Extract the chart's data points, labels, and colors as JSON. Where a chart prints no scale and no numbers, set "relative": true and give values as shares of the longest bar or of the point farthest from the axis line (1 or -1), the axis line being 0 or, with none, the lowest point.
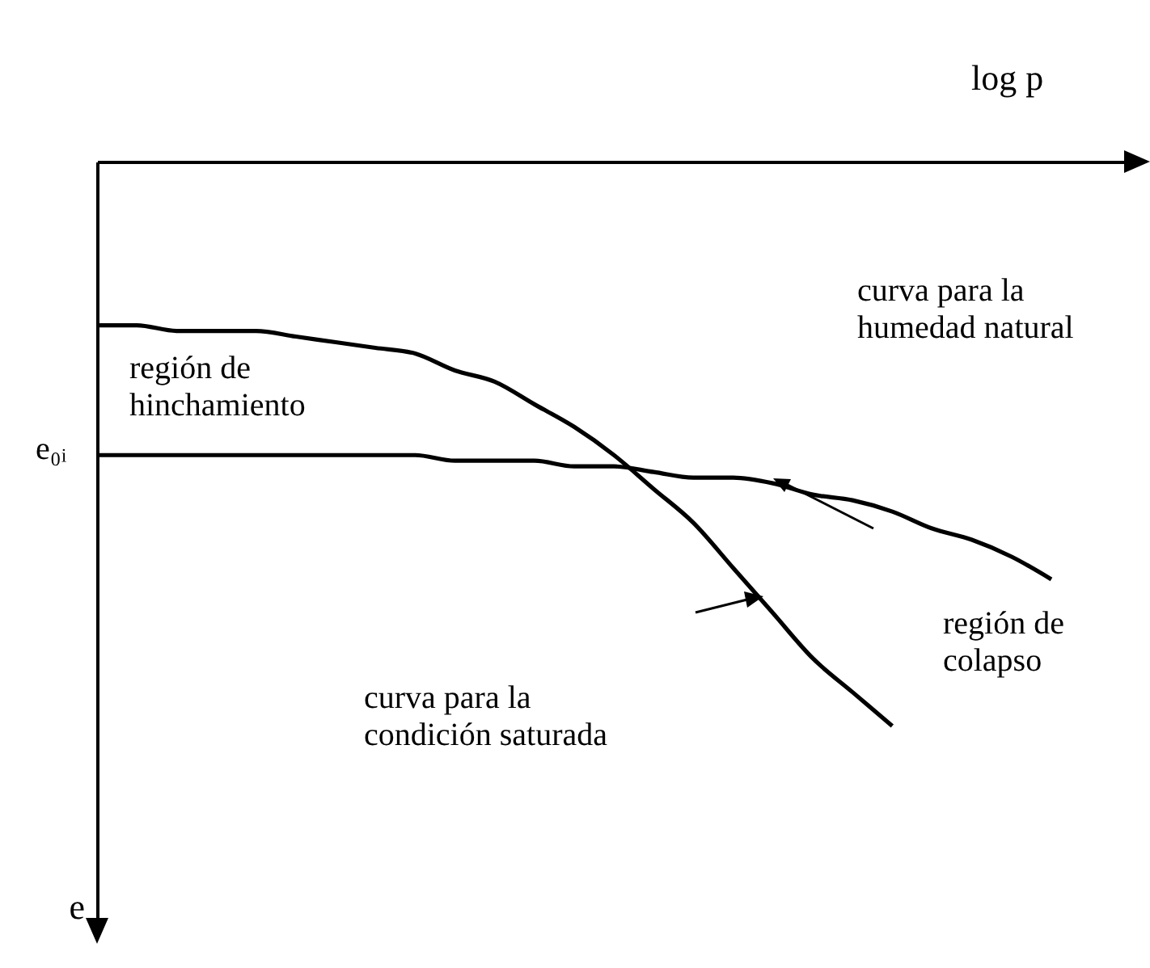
{
  "chart_data": {
    "type": "line",
    "relative": true,
    "xlabel": "log p",
    "ylabel": "e",
    "categories": [
      null,
      null,
      null,
      null,
      null,
      null,
      null,
      null,
      null,
      null,
      null,
      null,
      null,
      null,
      null,
      null,
      null,
      null,
      null,
      null,
      null,
      null,
      null,
      null,
      null
    ],
    "series": [
      {
        "color": "#000000",
        "values": [
          -0.29,
          -0.29,
          -0.3,
          -0.3,
          -0.3,
          -0.31,
          -0.32,
          -0.33,
          -0.34,
          -0.37,
          -0.39,
          -0.43,
          -0.47,
          -0.52,
          -0.58,
          -0.64,
          -0.72,
          -0.8,
          -0.88,
          -0.94,
          -1,
          null,
          null,
          null,
          null
        ]
      },
      {
        "color": "#000000",
        "values": [
          -0.52,
          -0.52,
          -0.52,
          -0.52,
          -0.52,
          -0.52,
          -0.52,
          -0.52,
          -0.52,
          -0.53,
          -0.53,
          -0.53,
          -0.54,
          -0.54,
          -0.55,
          -0.56,
          -0.56,
          -0.57,
          -0.59,
          -0.6,
          -0.62,
          -0.65,
          -0.67,
          -0.7,
          -0.74
        ]
      }
    ],
    "annotations": [
      "e₀ᵢ",
      "región de\nhinchamiento",
      "curva para la\nhumedad natural",
      "región de\ncolapso",
      "curva para la\ncondición saturada"
    ],
    "legend": false,
    "grid": false,
    "marker": "none",
    "line_style": "solid"
  }
}
